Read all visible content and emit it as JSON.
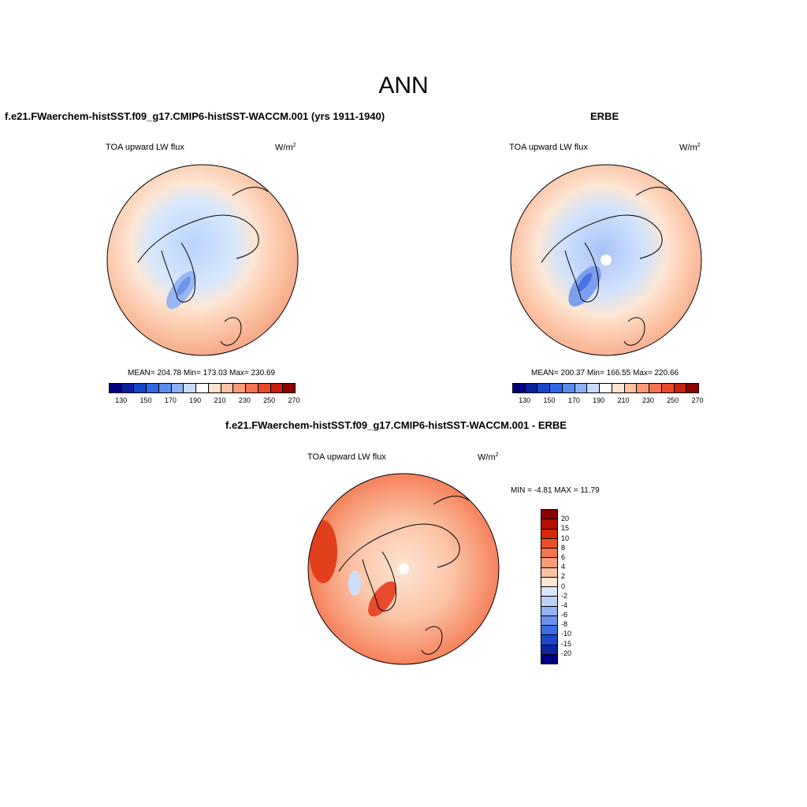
{
  "title": "ANN",
  "panels": [
    {
      "title": "f.e21.FWaerchem-histSST.f09_g17.CMIP6-histSST-WACCM.001 (yrs 1911-1940)",
      "variable": "TOA upward LW flux",
      "units": "W/m",
      "units_sup": "2",
      "stats": "MEAN= 204.78  Min= 173.03  Max= 230.69"
    },
    {
      "title": "ERBE",
      "variable": "TOA upward LW flux",
      "units": "W/m",
      "units_sup": "2",
      "stats": "MEAN= 200.37  Min= 166.55  Max= 220.66"
    },
    {
      "title": "f.e21.FWaerchem-histSST.f09_g17.CMIP6-histSST-WACCM.001 - ERBE",
      "variable": "TOA upward LW flux",
      "units": "W/m",
      "units_sup": "2",
      "stats": "MIN =  -4.81 MAX =  11.79"
    }
  ],
  "colorbar_abs": {
    "colors": [
      "#00007f",
      "#0a1f9e",
      "#1545c8",
      "#2f67e6",
      "#5a8cf0",
      "#8cb0f5",
      "#c7dcfb",
      "#ffffff",
      "#fde2cf",
      "#fbc1a3",
      "#f89a78",
      "#f47452",
      "#e84a2c",
      "#c82010",
      "#8c0000"
    ],
    "labels": [
      "130",
      "150",
      "170",
      "190",
      "210",
      "230",
      "250",
      "270"
    ]
  },
  "colorbar_diff": {
    "colors": [
      "#8c0000",
      "#b31000",
      "#d42808",
      "#ec4f26",
      "#f4744d",
      "#f89c7a",
      "#fbc3a5",
      "#fde6d3",
      "#d9e6fb",
      "#bcd0f8",
      "#94b3f3",
      "#6a93ed",
      "#3c6de3",
      "#1c47c9",
      "#0c25a3",
      "#000080"
    ],
    "labels": [
      "20",
      "15",
      "10",
      "8",
      "6",
      "4",
      "2",
      "0",
      "-2",
      "-4",
      "-6",
      "-8",
      "-10",
      "-15",
      "-20"
    ]
  }
}
